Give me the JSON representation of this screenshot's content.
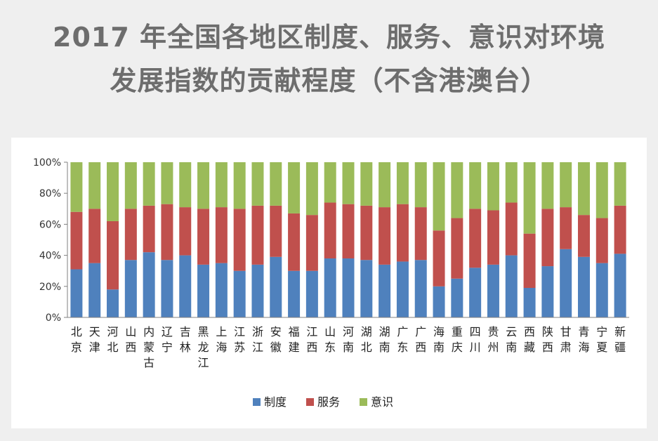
{
  "title": {
    "line1": "2017 年全国各地区制度、服务、意识对环境",
    "line2": "发展指数的贡献程度（不含港澳台）"
  },
  "chart_data": {
    "type": "bar",
    "stacked": true,
    "categories": [
      "北京",
      "天津",
      "河北",
      "山西",
      "内蒙古",
      "辽宁",
      "吉林",
      "黑龙江",
      "上海",
      "江苏",
      "浙江",
      "安徽",
      "福建",
      "江西",
      "山东",
      "河南",
      "湖北",
      "湖南",
      "广东",
      "广西",
      "海南",
      "重庆",
      "四川",
      "贵州",
      "云南",
      "西藏",
      "陕西",
      "甘肃",
      "青海",
      "宁夏",
      "新疆"
    ],
    "series": [
      {
        "name": "制度",
        "color": "#4f81bd",
        "values": [
          31,
          35,
          18,
          37,
          42,
          37,
          40,
          34,
          35,
          30,
          34,
          39,
          30,
          30,
          38,
          38,
          37,
          34,
          36,
          37,
          20,
          25,
          32,
          34,
          40,
          19,
          33,
          44,
          39,
          35,
          41
        ]
      },
      {
        "name": "服务",
        "color": "#c0504d",
        "values": [
          37,
          35,
          44,
          33,
          30,
          36,
          31,
          36,
          36,
          40,
          38,
          33,
          37,
          36,
          36,
          35,
          35,
          37,
          37,
          34,
          36,
          39,
          38,
          35,
          34,
          35,
          37,
          27,
          27,
          29,
          31
        ]
      },
      {
        "name": "意识",
        "color": "#9bbb59",
        "values": [
          32,
          30,
          38,
          30,
          28,
          27,
          29,
          30,
          29,
          30,
          28,
          28,
          33,
          34,
          26,
          27,
          28,
          29,
          27,
          29,
          44,
          36,
          30,
          31,
          26,
          46,
          30,
          29,
          34,
          36,
          28
        ]
      }
    ],
    "y_ticks": [
      "0%",
      "20%",
      "40%",
      "60%",
      "80%",
      "100%"
    ],
    "ylim": [
      0,
      100
    ],
    "grid": false,
    "legend": "bottom"
  }
}
